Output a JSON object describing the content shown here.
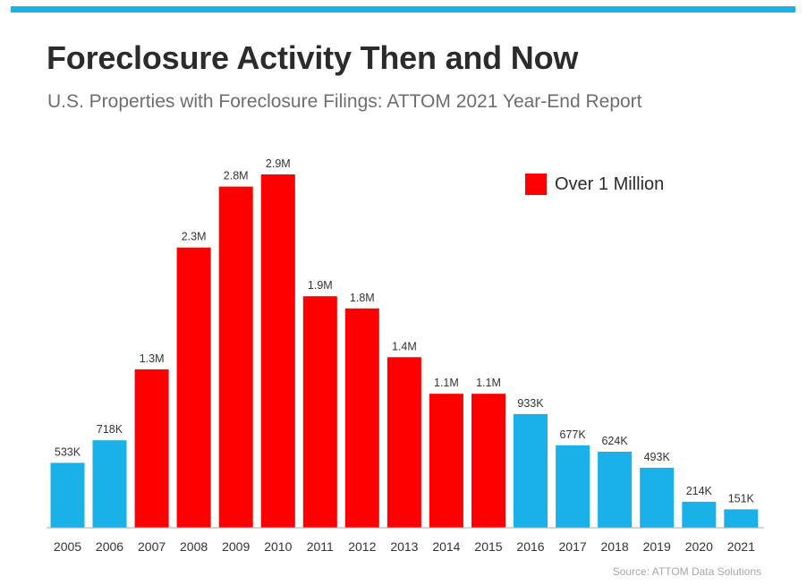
{
  "colors": {
    "accent_bar": "#1ab0e8",
    "blue": "#1ab0e8",
    "red": "#ff0000",
    "axis": "#aaaaaa"
  },
  "header": {
    "title": "Foreclosure Activity Then and Now",
    "subtitle": "U.S. Properties with Foreclosure Filings: ATTOM 2021 Year-End Report"
  },
  "legend": {
    "label": "Over 1 Million",
    "position": "top-right"
  },
  "source": "Source: ATTOM Data Solutions",
  "chart_data": {
    "type": "bar",
    "title": "Foreclosure Activity Then and Now",
    "subtitle": "U.S. Properties with Foreclosure Filings: ATTOM 2021 Year-End Report",
    "xlabel": "",
    "ylabel": "",
    "grid": false,
    "ylim": [
      0,
      3200000
    ],
    "categories": [
      "2005",
      "2006",
      "2007",
      "2008",
      "2009",
      "2010",
      "2011",
      "2012",
      "2013",
      "2014",
      "2015",
      "2016",
      "2017",
      "2018",
      "2019",
      "2020",
      "2021"
    ],
    "values": [
      533000,
      718000,
      1300000,
      2300000,
      2800000,
      2900000,
      1900000,
      1800000,
      1400000,
      1100000,
      1100000,
      933000,
      677000,
      624000,
      493000,
      214000,
      151000
    ],
    "labels": [
      "533K",
      "718K",
      "1.3M",
      "2.3M",
      "2.8M",
      "2.9M",
      "1.9M",
      "1.8M",
      "1.4M",
      "1.1M",
      "1.1M",
      "933K",
      "677K",
      "624K",
      "493K",
      "214K",
      "151K"
    ],
    "bar_colors": [
      "#1ab0e8",
      "#1ab0e8",
      "#ff0000",
      "#ff0000",
      "#ff0000",
      "#ff0000",
      "#ff0000",
      "#ff0000",
      "#ff0000",
      "#ff0000",
      "#ff0000",
      "#1ab0e8",
      "#1ab0e8",
      "#1ab0e8",
      "#1ab0e8",
      "#1ab0e8",
      "#1ab0e8"
    ]
  }
}
